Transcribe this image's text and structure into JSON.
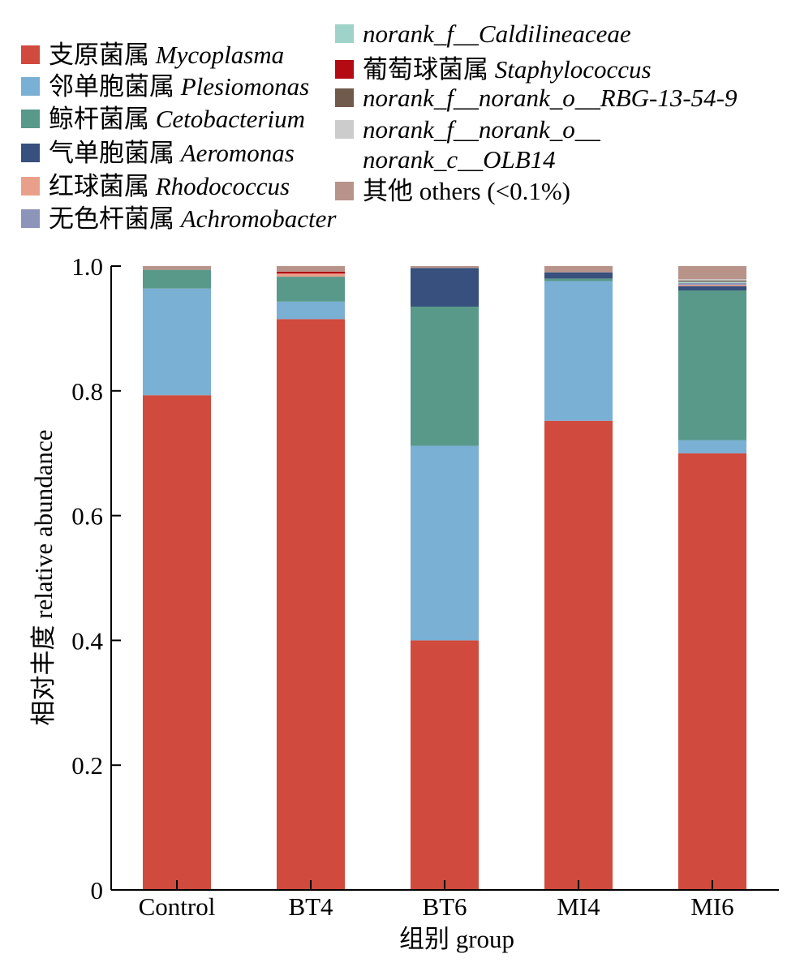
{
  "chart_data": {
    "type": "bar",
    "stacked": true,
    "categories": [
      "Control",
      "BT4",
      "BT6",
      "MI4",
      "MI6"
    ],
    "xlabel": "组别 group",
    "ylabel": "相对丰度 relative abundance",
    "ylim": [
      0,
      1.0
    ],
    "yticks": [
      "0",
      "0.2",
      "0.4",
      "0.6",
      "0.8",
      "1.0"
    ],
    "grid": false,
    "legend_placement": "top",
    "series": [
      {
        "name": "Mycoplasma",
        "cn": "支原菌属",
        "latin": "Mycoplasma",
        "italic": true,
        "color": "#d04a3d",
        "values": [
          0.793,
          0.915,
          0.4,
          0.752,
          0.7
        ]
      },
      {
        "name": "Plesiomonas",
        "cn": "邻单胞菌属",
        "latin": "Plesiomonas",
        "italic": true,
        "color": "#7ab0d4",
        "values": [
          0.171,
          0.028,
          0.312,
          0.224,
          0.021
        ]
      },
      {
        "name": "Cetobacterium",
        "cn": "鲸杆菌属",
        "latin": "Cetobacterium",
        "italic": true,
        "color": "#58998a",
        "values": [
          0.03,
          0.04,
          0.223,
          0.004,
          0.24
        ]
      },
      {
        "name": "Aeromonas",
        "cn": "气单胞菌属",
        "latin": "Aeromonas",
        "italic": true,
        "color": "#37507d",
        "values": [
          0.0,
          0.0,
          0.062,
          0.01,
          0.007
        ]
      },
      {
        "name": "Rhodococcus",
        "cn": "红球菌属",
        "latin": "Rhodococcus",
        "italic": true,
        "color": "#e9a08a",
        "values": [
          0.0,
          0.005,
          0.0,
          0.0,
          0.002
        ]
      },
      {
        "name": "Achromobacter",
        "cn": "无色杆菌属",
        "latin": "Achromobacter",
        "italic": true,
        "color": "#8d94b9",
        "values": [
          0.0,
          0.0,
          0.0,
          0.0,
          0.003
        ]
      },
      {
        "name": "norank_f__Caldilineaceae",
        "cn": "",
        "latin": "norank_f__Caldilineaceae",
        "italic": true,
        "color": "#9fd2c8",
        "values": [
          0.0,
          0.0,
          0.0,
          0.0,
          0.002
        ]
      },
      {
        "name": "Staphylococcus",
        "cn": "葡萄球菌属",
        "latin": "Staphylococcus",
        "italic": true,
        "color": "#b30a14",
        "values": [
          0.0,
          0.003,
          0.0,
          0.0,
          0.0
        ]
      },
      {
        "name": "norank_f__norank_o__RBG-13-54-9",
        "cn": "",
        "latin": "norank_f__norank_o__RBG-13-54-9",
        "italic": true,
        "color": "#705a4c",
        "values": [
          0.0,
          0.0,
          0.0,
          0.0,
          0.002
        ]
      },
      {
        "name": "norank_f__norank_o__norank_c__OLB14",
        "cn": "",
        "latin": "norank_f__norank_o__",
        "latin2": "norank_c__OLB14",
        "italic": true,
        "color": "#cccccc",
        "values": [
          0.0,
          0.0,
          0.0,
          0.0,
          0.002
        ]
      },
      {
        "name": "others (<0.1%)",
        "cn": "其他",
        "latin": "others (<0.1%)",
        "italic": false,
        "color": "#b8938a",
        "values": [
          0.006,
          0.009,
          0.003,
          0.01,
          0.021
        ]
      }
    ]
  }
}
